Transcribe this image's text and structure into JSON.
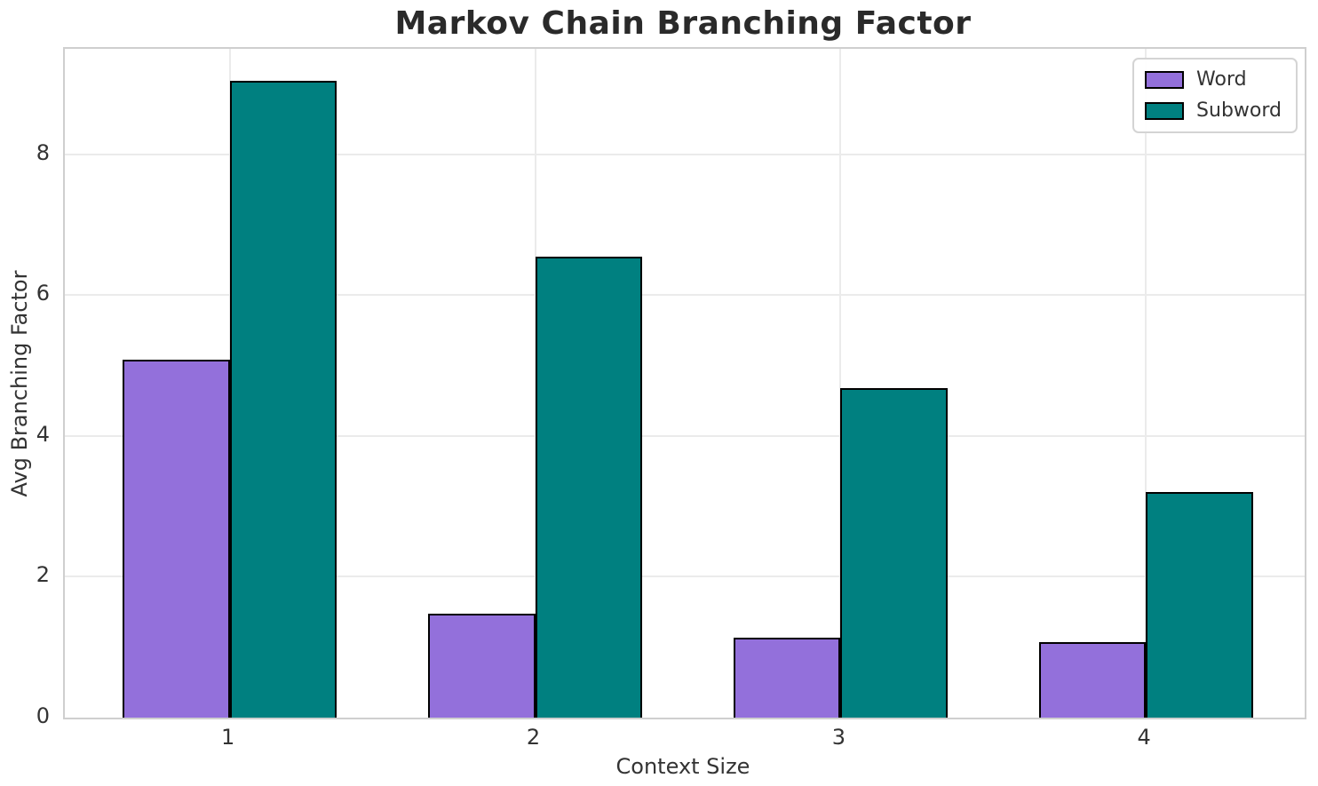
{
  "title": "Markov Chain Branching Factor",
  "chart_data": {
    "type": "bar",
    "title": "Markov Chain Branching Factor",
    "xlabel": "Context Size",
    "ylabel": "Avg Branching Factor",
    "categories": [
      "1",
      "2",
      "3",
      "4"
    ],
    "series": [
      {
        "name": "Word",
        "color": "#9370DB",
        "values": [
          5.08,
          1.47,
          1.13,
          1.07
        ]
      },
      {
        "name": "Subword",
        "color": "#008080",
        "values": [
          9.05,
          6.55,
          4.68,
          3.21
        ]
      }
    ],
    "bar_width_units": 0.35,
    "bar_edge_color": "#000000",
    "xlim": [
      0.46,
      4.52
    ],
    "ylim": [
      0,
      9.5
    ],
    "yticks": [
      0,
      2,
      4,
      6,
      8
    ],
    "grid": true,
    "grid_color": "#ebebeb",
    "legend_position": "upper right",
    "legend_labels": [
      "Word",
      "Subword"
    ]
  },
  "colors": {
    "word": "#9370DB",
    "subword": "#008080",
    "spine": "#cfcfcf",
    "title_text": "#2a2a2a",
    "tick_text": "#333333"
  }
}
